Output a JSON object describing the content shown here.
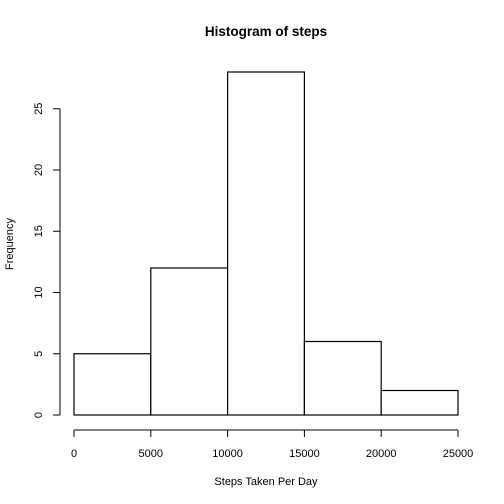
{
  "chart_data": {
    "type": "bar",
    "title": "Histogram of steps",
    "xlabel": "Steps Taken Per Day",
    "ylabel": "Frequency",
    "bins": [
      {
        "start": 0,
        "end": 5000,
        "count": 5
      },
      {
        "start": 5000,
        "end": 10000,
        "count": 12
      },
      {
        "start": 10000,
        "end": 15000,
        "count": 28
      },
      {
        "start": 15000,
        "end": 20000,
        "count": 6
      },
      {
        "start": 20000,
        "end": 25000,
        "count": 2
      }
    ],
    "xlim": [
      0,
      25000
    ],
    "ylim": [
      0,
      28
    ],
    "x_ticks": [
      0,
      5000,
      10000,
      15000,
      20000,
      25000
    ],
    "y_ticks": [
      0,
      5,
      10,
      15,
      20,
      25
    ],
    "grid": false,
    "legend": "none",
    "bar_fill": "#ffffff",
    "bar_stroke": "#000000"
  }
}
